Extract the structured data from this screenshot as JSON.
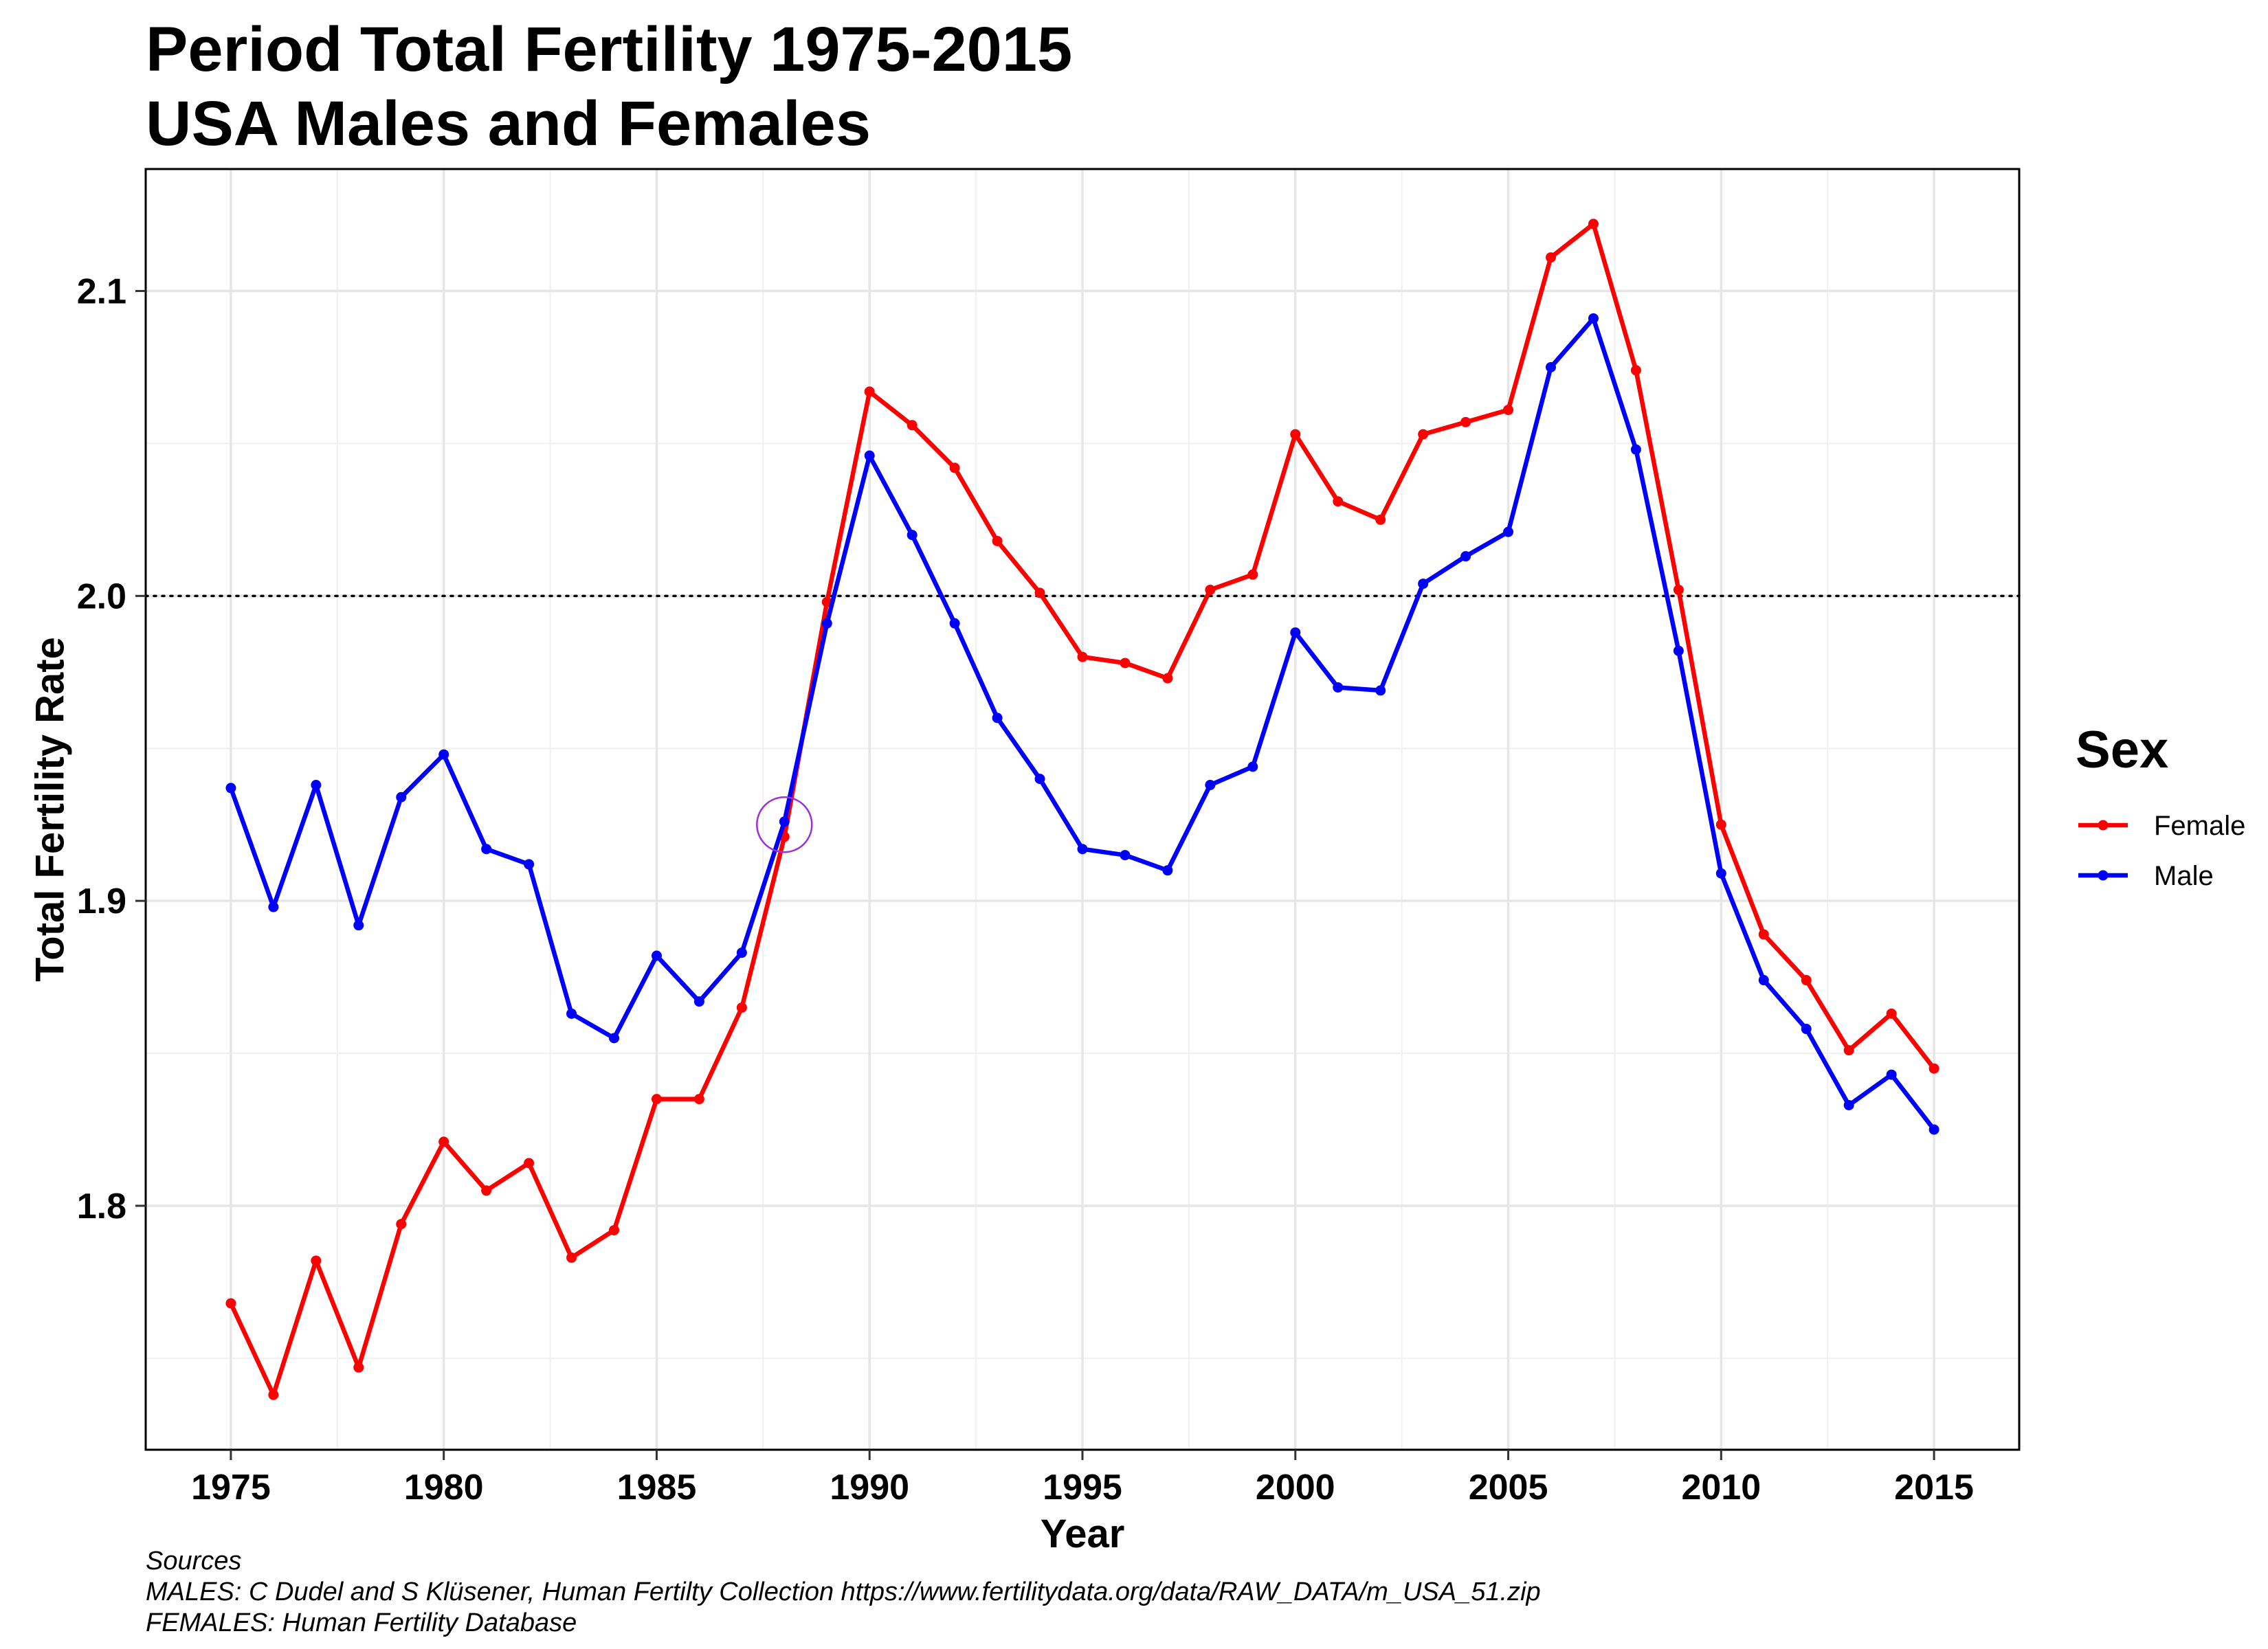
{
  "title": {
    "line1": "Period Total Fertility 1975-2015",
    "line2": "USA Males and Females"
  },
  "chart_data": {
    "type": "line",
    "xlabel": "Year",
    "ylabel": "Total Fertility Rate",
    "xlim": [
      1973,
      2017
    ],
    "ylim": [
      1.72,
      2.14
    ],
    "x_ticks": [
      1975,
      1980,
      1985,
      1990,
      1995,
      2000,
      2005,
      2010,
      2015
    ],
    "y_ticks": [
      1.8,
      1.9,
      2.0,
      2.1
    ],
    "y_tick_labels": [
      "1.8",
      "1.9",
      "2.0",
      "2.1"
    ],
    "reference_line": {
      "y": 2.0,
      "style": "dotted"
    },
    "highlight": {
      "x": 1988,
      "y": 1.925,
      "shape": "circle",
      "color": "#9b30d9"
    },
    "grid": true,
    "legend": {
      "title": "Sex",
      "position": "right"
    },
    "x": [
      1975,
      1976,
      1977,
      1978,
      1979,
      1980,
      1981,
      1982,
      1983,
      1984,
      1985,
      1986,
      1987,
      1988,
      1989,
      1990,
      1991,
      1992,
      1993,
      1994,
      1995,
      1996,
      1997,
      1998,
      1999,
      2000,
      2001,
      2002,
      2003,
      2004,
      2005,
      2006,
      2007,
      2008,
      2009,
      2010,
      2011,
      2012,
      2013,
      2014,
      2015
    ],
    "series": [
      {
        "name": "Female",
        "color": "#ff0000",
        "values": [
          1.768,
          1.738,
          1.782,
          1.747,
          1.794,
          1.821,
          1.805,
          1.814,
          1.783,
          1.792,
          1.835,
          1.835,
          1.865,
          1.921,
          1.998,
          2.067,
          2.056,
          2.042,
          2.018,
          2.001,
          1.98,
          1.978,
          1.973,
          2.002,
          2.007,
          2.053,
          2.031,
          2.025,
          2.053,
          2.057,
          2.061,
          2.111,
          2.122,
          2.074,
          2.002,
          1.925,
          1.889,
          1.874,
          1.851,
          1.863,
          1.845
        ]
      },
      {
        "name": "Male",
        "color": "#0000ff",
        "values": [
          1.937,
          1.898,
          1.938,
          1.892,
          1.934,
          1.948,
          1.917,
          1.912,
          1.863,
          1.855,
          1.882,
          1.867,
          1.883,
          1.926,
          1.991,
          2.046,
          2.02,
          1.991,
          1.96,
          1.94,
          1.917,
          1.915,
          1.91,
          1.938,
          1.944,
          1.988,
          1.97,
          1.969,
          2.004,
          2.013,
          2.021,
          2.075,
          2.091,
          2.048,
          1.982,
          1.909,
          1.874,
          1.858,
          1.833,
          1.843,
          1.825
        ]
      }
    ]
  },
  "caption": {
    "line1": "Sources",
    "line2": "MALES: C Dudel and S Klüsener, Human Fertilty Collection https://www.fertilitydata.org/data/RAW_DATA/m_USA_51.zip",
    "line3": "FEMALES: Human Fertility Database"
  }
}
